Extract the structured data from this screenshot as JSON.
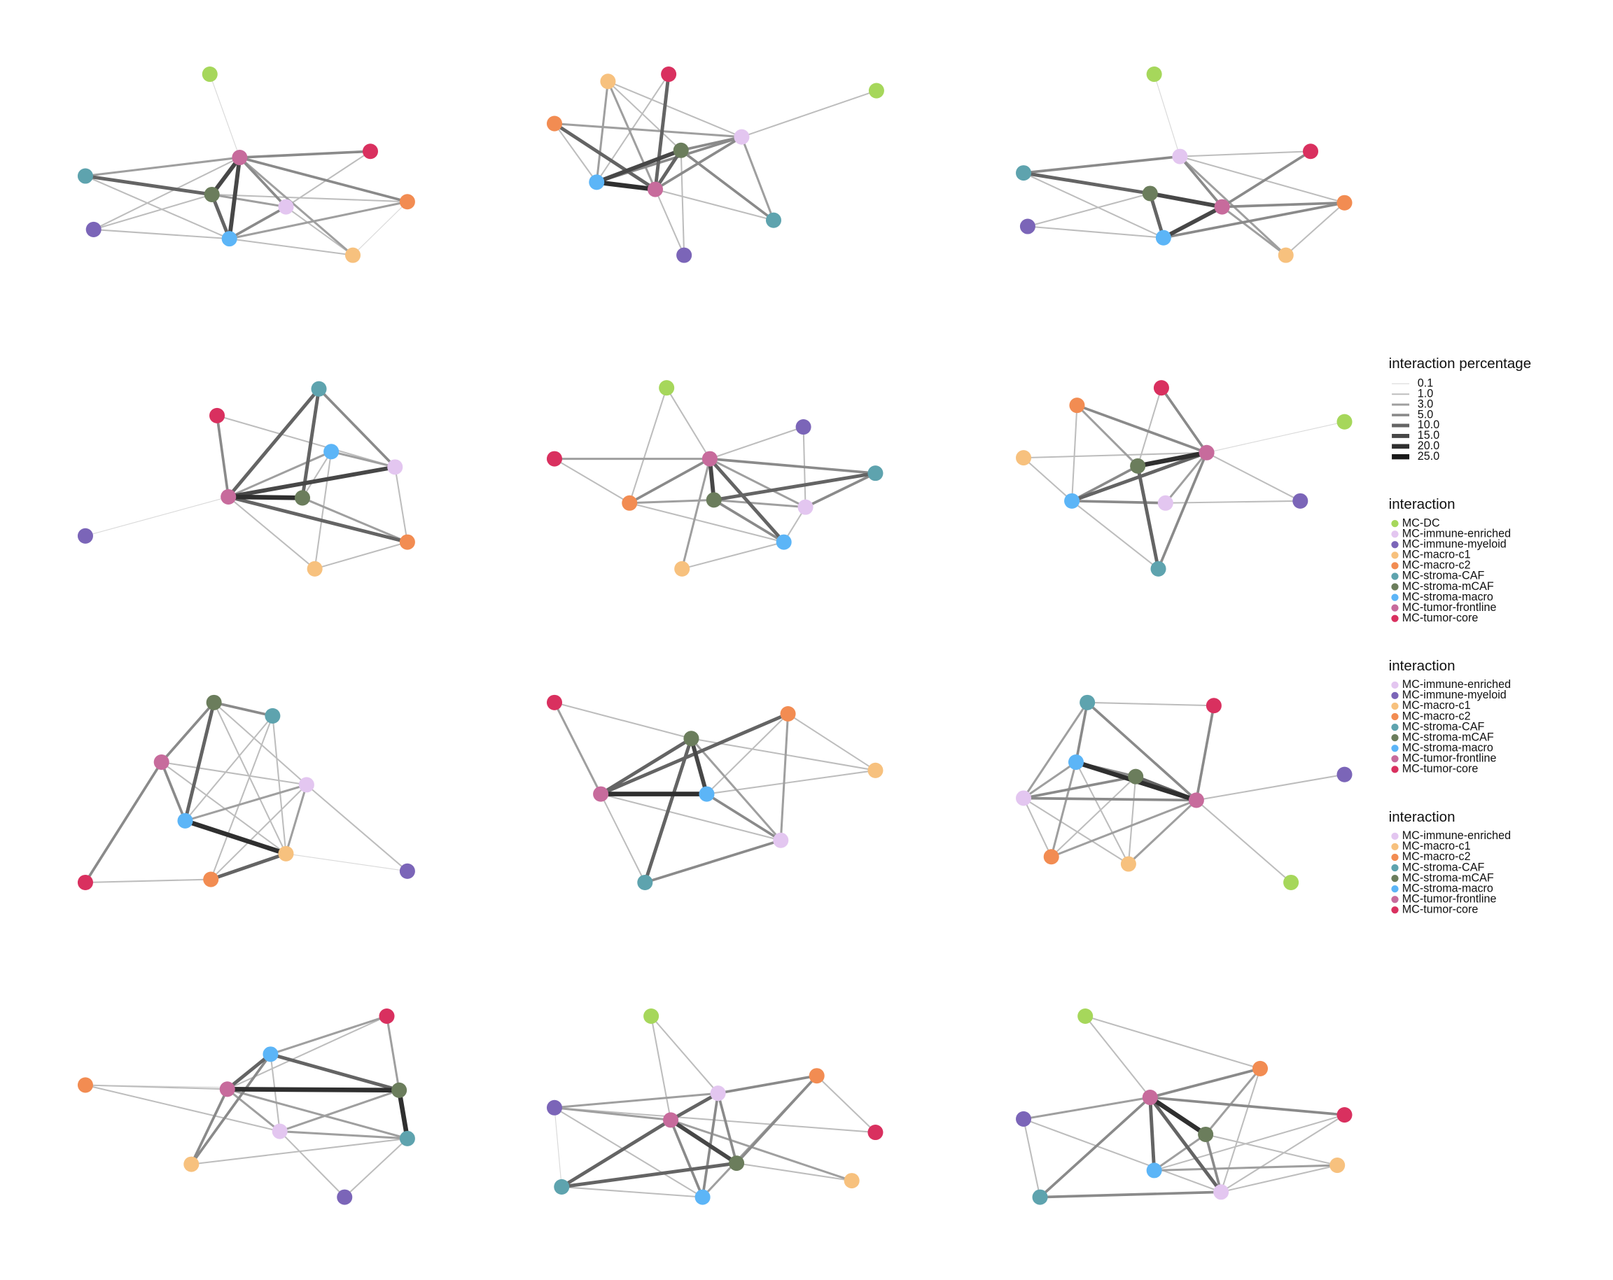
{
  "width_legend": {
    "title": "interaction percentage",
    "items": [
      0.1,
      {
        "value": 1,
        "label": "1.0"
      },
      {
        "value": 3,
        "label": "3.0"
      },
      {
        "value": 5,
        "label": "5.0"
      },
      {
        "value": 10,
        "label": "10.0"
      },
      {
        "value": 15,
        "label": "15.0"
      },
      {
        "value": 20,
        "label": "20.0"
      },
      {
        "value": 25,
        "label": "25.0"
      }
    ]
  },
  "color_legends": [
    {
      "title": "interaction",
      "items": [
        {
          "name": "MC-DC",
          "color": "#a6d75b"
        },
        {
          "name": "MC-immune-enriched",
          "color": "#e3c6f0"
        },
        {
          "name": "MC-immune-myeloid",
          "color": "#7b65b8"
        },
        {
          "name": "MC-macro-c1",
          "color": "#f7c17e"
        },
        {
          "name": "MC-macro-c2",
          "color": "#f28c52"
        },
        {
          "name": "MC-stroma-CAF",
          "color": "#5ea3ae"
        },
        {
          "name": "MC-stroma-mCAF",
          "color": "#6b7d5c"
        },
        {
          "name": "MC-stroma-macro",
          "color": "#5cb5f7"
        },
        {
          "name": "MC-tumor-frontline",
          "color": "#c76b9c"
        },
        {
          "name": "MC-tumor-core",
          "color": "#d9305f"
        }
      ]
    },
    {
      "title": "interaction",
      "items": [
        {
          "name": "MC-immune-enriched",
          "color": "#e3c6f0"
        },
        {
          "name": "MC-immune-myeloid",
          "color": "#7b65b8"
        },
        {
          "name": "MC-macro-c1",
          "color": "#f7c17e"
        },
        {
          "name": "MC-macro-c2",
          "color": "#f28c52"
        },
        {
          "name": "MC-stroma-CAF",
          "color": "#5ea3ae"
        },
        {
          "name": "MC-stroma-mCAF",
          "color": "#6b7d5c"
        },
        {
          "name": "MC-stroma-macro",
          "color": "#5cb5f7"
        },
        {
          "name": "MC-tumor-frontline",
          "color": "#c76b9c"
        },
        {
          "name": "MC-tumor-core",
          "color": "#d9305f"
        }
      ]
    },
    {
      "title": "interaction",
      "items": [
        {
          "name": "MC-immune-enriched",
          "color": "#e3c6f0"
        },
        {
          "name": "MC-macro-c1",
          "color": "#f7c17e"
        },
        {
          "name": "MC-macro-c2",
          "color": "#f28c52"
        },
        {
          "name": "MC-stroma-CAF",
          "color": "#5ea3ae"
        },
        {
          "name": "MC-stroma-mCAF",
          "color": "#6b7d5c"
        },
        {
          "name": "MC-stroma-macro",
          "color": "#5cb5f7"
        },
        {
          "name": "MC-tumor-frontline",
          "color": "#c76b9c"
        },
        {
          "name": "MC-tumor-core",
          "color": "#d9305f"
        }
      ]
    }
  ],
  "networks": [
    {
      "weights": [
        15,
        15,
        10,
        10,
        5,
        5,
        5,
        3,
        3,
        5,
        3,
        3,
        0.1,
        1,
        1,
        1,
        1,
        1,
        1,
        1,
        1,
        0.1
      ]
    },
    {
      "weights": [
        20,
        15,
        10,
        10,
        10,
        5,
        5,
        5,
        5,
        3,
        3,
        3,
        3,
        1,
        1,
        1,
        1,
        1,
        1,
        1,
        1
      ]
    },
    {
      "weights": [
        15,
        15,
        10,
        10,
        5,
        5,
        5,
        5,
        5,
        3,
        3,
        1,
        1,
        0.1,
        1,
        1,
        1,
        1
      ]
    },
    {
      "weights": [
        20,
        15,
        10,
        10,
        10,
        5,
        5,
        3,
        3,
        1,
        0.1,
        3,
        1,
        1,
        1,
        1,
        1
      ]
    },
    {
      "weights": [
        15,
        10,
        10,
        5,
        5,
        5,
        5,
        3,
        3,
        3,
        3,
        1,
        1,
        1,
        1,
        1,
        1,
        3,
        1,
        1
      ]
    },
    {
      "weights": [
        20,
        10,
        10,
        5,
        5,
        5,
        3,
        5,
        5,
        1,
        1,
        1,
        0.1,
        1,
        1,
        1,
        1,
        3
      ]
    },
    {
      "weights": [
        20,
        10,
        10,
        5,
        5,
        5,
        5,
        3,
        3,
        1,
        1,
        1,
        1,
        1,
        1,
        1,
        0.1,
        1,
        1,
        1
      ]
    },
    {
      "weights": [
        20,
        15,
        10,
        10,
        10,
        5,
        5,
        3,
        3,
        3,
        1,
        1,
        1,
        1,
        1,
        1,
        1
      ]
    },
    {
      "weights": [
        20,
        10,
        5,
        5,
        5,
        5,
        5,
        5,
        3,
        3,
        3,
        3,
        3,
        1,
        1,
        1,
        1,
        1,
        1,
        1,
        1
      ]
    },
    {
      "weights": [
        20,
        20,
        10,
        10,
        5,
        5,
        3,
        3,
        3,
        3,
        3,
        3,
        1,
        1,
        0.1,
        1,
        1,
        1,
        1,
        1
      ]
    },
    {
      "weights": [
        15,
        10,
        10,
        10,
        5,
        5,
        5,
        5,
        5,
        3,
        3,
        3,
        1,
        1,
        1,
        1,
        1,
        1,
        3,
        1,
        0.1
      ]
    },
    {
      "weights": [
        20,
        10,
        10,
        5,
        5,
        5,
        5,
        5,
        3,
        3,
        3,
        3,
        1,
        1,
        1,
        1,
        1,
        1,
        1,
        1,
        1
      ]
    }
  ]
}
